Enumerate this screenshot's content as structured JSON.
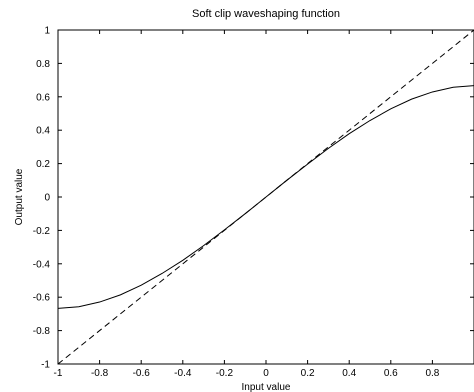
{
  "chart_data": {
    "type": "line",
    "title": "Soft clip waveshaping function",
    "xlabel": "Input value",
    "ylabel": "Output value",
    "xlim": [
      -1,
      1
    ],
    "ylim": [
      -1,
      1
    ],
    "xticks": [
      -1,
      -0.8,
      -0.6,
      -0.4,
      -0.2,
      0,
      0.2,
      0.4,
      0.6,
      0.8
    ],
    "xtick_labels": [
      "-1",
      "-0.8",
      "-0.6",
      "-0.4",
      "-0.2",
      "0",
      "0.2",
      "0.4",
      "0.6",
      "0.8"
    ],
    "yticks": [
      -1,
      -0.8,
      -0.6,
      -0.4,
      -0.2,
      0,
      0.2,
      0.4,
      0.6,
      0.8,
      1
    ],
    "ytick_labels": [
      "-1",
      "-0.8",
      "-0.6",
      "-0.4",
      "-0.2",
      "0",
      "0.2",
      "0.4",
      "0.6",
      "0.8",
      "1"
    ],
    "grid": false,
    "series": [
      {
        "style": "solid",
        "color": "#000000",
        "x": [
          -1,
          -0.9,
          -0.8,
          -0.7,
          -0.6,
          -0.5,
          -0.4,
          -0.3,
          -0.2,
          -0.1,
          0,
          0.1,
          0.2,
          0.3,
          0.4,
          0.5,
          0.6,
          0.7,
          0.8,
          0.9,
          1
        ],
        "y": [
          -0.667,
          -0.657,
          -0.629,
          -0.586,
          -0.528,
          -0.458,
          -0.379,
          -0.291,
          -0.197,
          -0.1,
          0,
          0.1,
          0.197,
          0.291,
          0.379,
          0.458,
          0.528,
          0.586,
          0.629,
          0.657,
          0.667
        ]
      },
      {
        "style": "dashed",
        "color": "#000000",
        "x": [
          -1,
          1
        ],
        "y": [
          -1,
          1
        ]
      }
    ]
  }
}
